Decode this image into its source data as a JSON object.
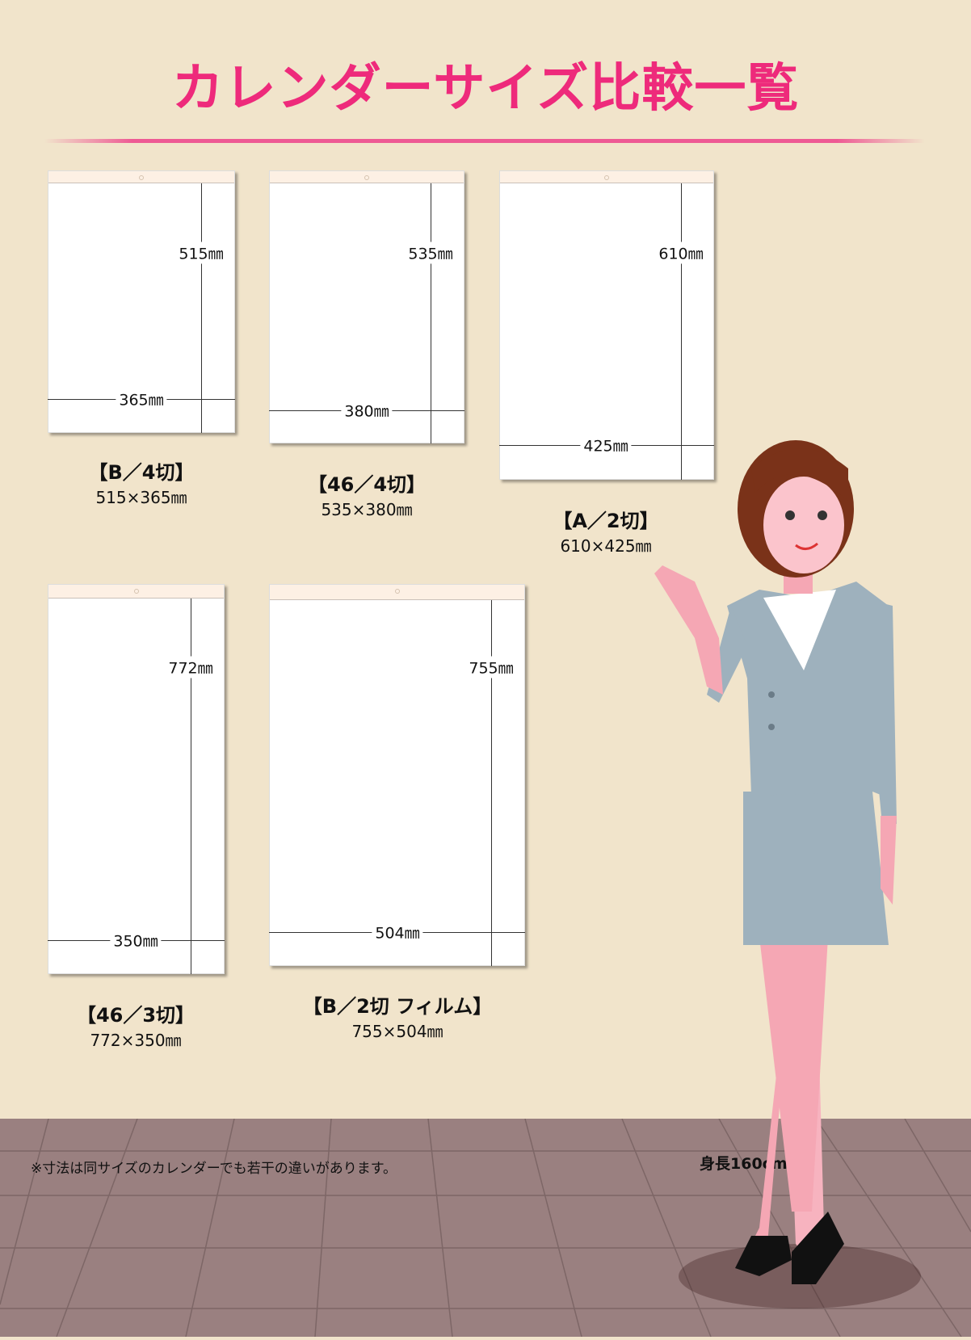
{
  "title": "カレンダーサイズ比較一覧",
  "unit": "㎜",
  "calendars": [
    {
      "name": "【B／4切】",
      "size": "515×365㎜",
      "height_label": "515㎜",
      "width_label": "365㎜"
    },
    {
      "name": "【46／4切】",
      "size": "535×380㎜",
      "height_label": "535㎜",
      "width_label": "380㎜"
    },
    {
      "name": "【A／2切】",
      "size": "610×425㎜",
      "height_label": "610㎜",
      "width_label": "425㎜"
    },
    {
      "name": "【46／3切】",
      "size": "772×350㎜",
      "height_label": "772㎜",
      "width_label": "350㎜"
    },
    {
      "name": "【B／2切 フィルム】",
      "size": "755×504㎜",
      "height_label": "755㎜",
      "width_label": "504㎜"
    }
  ],
  "note": "※寸法は同サイズのカレンダーでも若干の違いがあります。",
  "person_height": "身長160cm",
  "colors": {
    "title": "#ee2a7b",
    "background": "#f1e4cb",
    "floor": "#9a8080",
    "suit": "#9eb1bd"
  }
}
